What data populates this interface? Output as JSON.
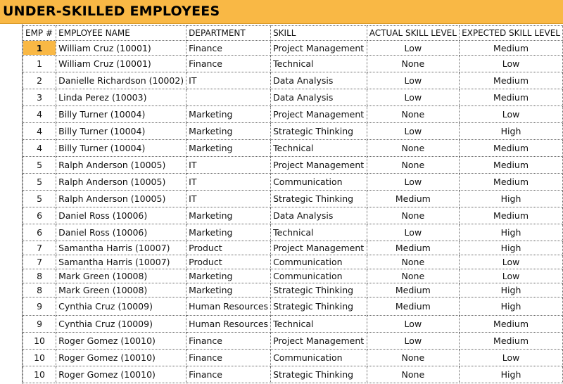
{
  "header": {
    "title": "UNDER-SKILLED EMPLOYEES"
  },
  "table": {
    "columns": [
      "EMP #",
      "EMPLOYEE NAME",
      "DEPARTMENT",
      "SKILL",
      "ACTUAL SKILL LEVEL",
      "EXPECTED SKILL LEVEL"
    ],
    "rows": [
      [
        1,
        "William Cruz (10001)",
        "Finance",
        "Project Management",
        "Low",
        "Medium"
      ],
      [
        1,
        "William Cruz (10001)",
        "Finance",
        "Technical",
        "None",
        "Low"
      ],
      [
        2,
        "Danielle Richardson (10002)",
        "IT",
        "Data Analysis",
        "Low",
        "Medium"
      ],
      [
        3,
        "Linda Perez (10003)",
        null,
        "Data Analysis",
        "Low",
        "Medium"
      ],
      [
        4,
        "Billy Turner (10004)",
        "Marketing",
        "Project Management",
        "None",
        "Low"
      ],
      [
        4,
        "Billy Turner (10004)",
        "Marketing",
        "Strategic Thinking",
        "Low",
        "High"
      ],
      [
        4,
        "Billy Turner (10004)",
        "Marketing",
        "Technical",
        "None",
        "Medium"
      ],
      [
        5,
        "Ralph Anderson (10005)",
        "IT",
        "Project Management",
        "None",
        "Medium"
      ],
      [
        5,
        "Ralph Anderson (10005)",
        "IT",
        "Communication",
        "Low",
        "Medium"
      ],
      [
        5,
        "Ralph Anderson (10005)",
        "IT",
        "Strategic Thinking",
        "Medium",
        "High"
      ],
      [
        6,
        "Daniel Ross (10006)",
        "Marketing",
        "Data Analysis",
        "None",
        "Medium"
      ],
      [
        6,
        "Daniel Ross (10006)",
        "Marketing",
        "Technical",
        "Low",
        "High"
      ],
      [
        7,
        "Samantha Harris (10007)",
        "Product",
        "Project Management",
        "Medium",
        "High"
      ],
      [
        7,
        "Samantha Harris (10007)",
        "Product",
        "Communication",
        "None",
        "Low"
      ],
      [
        8,
        "Mark Green (10008)",
        "Marketing",
        "Communication",
        "None",
        "Low"
      ],
      [
        8,
        "Mark Green (10008)",
        "Marketing",
        "Strategic Thinking",
        "Medium",
        "High"
      ],
      [
        9,
        "Cynthia Cruz (10009)",
        "Human Resources",
        "Strategic Thinking",
        "Medium",
        "High"
      ],
      [
        9,
        "Cynthia Cruz (10009)",
        "Human Resources",
        "Technical",
        "Low",
        "Medium"
      ],
      [
        10,
        "Roger Gomez (10010)",
        "Finance",
        "Project Management",
        "Low",
        "Medium"
      ],
      [
        10,
        "Roger Gomez (10010)",
        "Finance",
        "Communication",
        "None",
        "Low"
      ],
      [
        10,
        "Roger Gomez (10010)",
        "Finance",
        "Strategic Thinking",
        "None",
        "High"
      ]
    ]
  }
}
